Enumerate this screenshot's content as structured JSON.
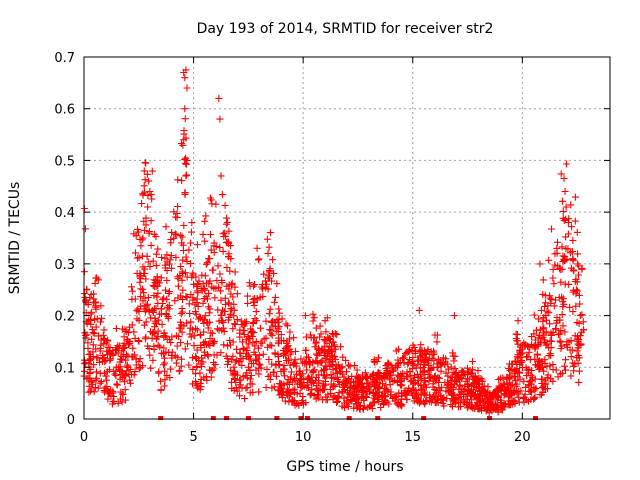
{
  "chart_data": {
    "type": "scatter",
    "title": "Day 193 of 2014, SRMTID for receiver str2",
    "xlabel": "GPS time / hours",
    "ylabel": "SRMTID / TECUs",
    "xlim": [
      0,
      24
    ],
    "ylim": [
      0,
      0.7
    ],
    "xticks": [
      0,
      5,
      10,
      15,
      20
    ],
    "xtick_labels": [
      "0",
      "5",
      "10",
      "15",
      "20"
    ],
    "yticks": [
      0,
      0.1,
      0.2,
      0.3,
      0.4,
      0.5,
      0.6,
      0.7
    ],
    "ytick_labels": [
      "0",
      "0.1",
      "0.2",
      "0.3",
      "0.4",
      "0.5",
      "0.6",
      "0.7"
    ],
    "grid": true,
    "marker": "plus",
    "color": "#ff0000",
    "series": [
      {
        "name": "SRMTID",
        "profile": [
          [
            0.0,
            0.22
          ],
          [
            0.15,
            0.14
          ],
          [
            0.5,
            0.15
          ],
          [
            0.9,
            0.11
          ],
          [
            1.3,
            0.08
          ],
          [
            1.7,
            0.09
          ],
          [
            2.0,
            0.11
          ],
          [
            2.3,
            0.2
          ],
          [
            2.6,
            0.27
          ],
          [
            2.9,
            0.32
          ],
          [
            3.2,
            0.22
          ],
          [
            3.5,
            0.15
          ],
          [
            3.8,
            0.2
          ],
          [
            4.1,
            0.24
          ],
          [
            4.4,
            0.26
          ],
          [
            4.6,
            0.38
          ],
          [
            4.8,
            0.22
          ],
          [
            5.0,
            0.18
          ],
          [
            5.3,
            0.15
          ],
          [
            5.6,
            0.2
          ],
          [
            6.0,
            0.21
          ],
          [
            6.5,
            0.24
          ],
          [
            6.8,
            0.15
          ],
          [
            7.2,
            0.1
          ],
          [
            7.6,
            0.14
          ],
          [
            8.0,
            0.15
          ],
          [
            8.5,
            0.18
          ],
          [
            9.0,
            0.1
          ],
          [
            9.5,
            0.08
          ],
          [
            9.9,
            0.06
          ],
          [
            10.3,
            0.1
          ],
          [
            10.8,
            0.09
          ],
          [
            11.3,
            0.1
          ],
          [
            11.8,
            0.06
          ],
          [
            12.2,
            0.05
          ],
          [
            12.8,
            0.05
          ],
          [
            13.5,
            0.06
          ],
          [
            14.0,
            0.07
          ],
          [
            14.5,
            0.07
          ],
          [
            15.0,
            0.09
          ],
          [
            15.5,
            0.08
          ],
          [
            16.0,
            0.08
          ],
          [
            16.5,
            0.07
          ],
          [
            17.0,
            0.06
          ],
          [
            17.5,
            0.06
          ],
          [
            18.0,
            0.05
          ],
          [
            18.5,
            0.03
          ],
          [
            19.0,
            0.04
          ],
          [
            19.5,
            0.07
          ],
          [
            20.0,
            0.09
          ],
          [
            20.5,
            0.1
          ],
          [
            21.0,
            0.14
          ],
          [
            21.5,
            0.2
          ],
          [
            22.0,
            0.25
          ],
          [
            22.5,
            0.2
          ],
          [
            22.8,
            0.18
          ]
        ],
        "spikes": [
          [
            0.05,
            0.235
          ],
          [
            0.1,
            0.225
          ],
          [
            2.95,
            0.46
          ],
          [
            3.0,
            0.44
          ],
          [
            2.9,
            0.41
          ],
          [
            4.55,
            0.67
          ],
          [
            4.6,
            0.66
          ],
          [
            4.65,
            0.675
          ],
          [
            4.7,
            0.64
          ],
          [
            4.6,
            0.6
          ],
          [
            4.55,
            0.54
          ],
          [
            4.7,
            0.5
          ],
          [
            4.65,
            0.47
          ],
          [
            6.15,
            0.62
          ],
          [
            6.2,
            0.58
          ],
          [
            6.25,
            0.47
          ],
          [
            6.6,
            0.34
          ],
          [
            6.7,
            0.31
          ],
          [
            7.9,
            0.33
          ],
          [
            8.2,
            0.28
          ],
          [
            15.3,
            0.21
          ],
          [
            21.9,
            0.465
          ],
          [
            21.95,
            0.44
          ],
          [
            22.0,
            0.41
          ],
          [
            22.1,
            0.38
          ],
          [
            22.3,
            0.31
          ],
          [
            20.8,
            0.3
          ],
          [
            10.1,
            0.2
          ],
          [
            11.0,
            0.19
          ],
          [
            14.8,
            0.13
          ],
          [
            16.9,
            0.2
          ],
          [
            19.8,
            0.19
          ]
        ],
        "zero_points": [
          3.5,
          5.9,
          6.5,
          7.5,
          8.8,
          9.9,
          10.2,
          12.1,
          13.4,
          15.5,
          18.5,
          20.6
        ],
        "total_points": 2400
      }
    ]
  }
}
